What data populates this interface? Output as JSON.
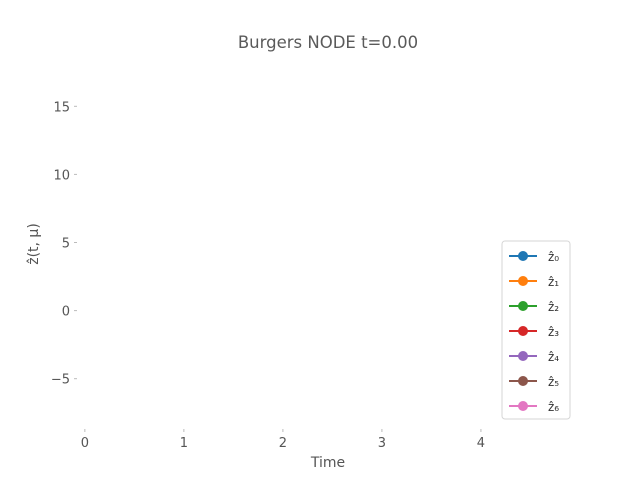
{
  "chart_data": {
    "type": "line",
    "title": "Burgers NODE t=0.00",
    "xlabel": "Time",
    "ylabel": "ẑ(t, μ)",
    "xlim": [
      -0.15,
      4.95
    ],
    "ylim": [
      -8.4,
      18.4
    ],
    "x_ticks": [
      0,
      1,
      2,
      3,
      4
    ],
    "y_ticks": [
      -5,
      0,
      5,
      10,
      15
    ],
    "grid": false,
    "legend_position": "lower-right",
    "series": [
      {
        "name": "ẑ₀",
        "color": "#1f77b4",
        "x": [],
        "y": []
      },
      {
        "name": "ẑ₁",
        "color": "#ff7f0e",
        "x": [],
        "y": []
      },
      {
        "name": "ẑ₂",
        "color": "#2ca02c",
        "x": [],
        "y": []
      },
      {
        "name": "ẑ₃",
        "color": "#d62728",
        "x": [],
        "y": []
      },
      {
        "name": "ẑ₄",
        "color": "#9467bd",
        "x": [],
        "y": []
      },
      {
        "name": "ẑ₅",
        "color": "#8c564b",
        "x": [],
        "y": []
      },
      {
        "name": "ẑ₆",
        "color": "#e377c2",
        "x": [],
        "y": []
      }
    ]
  }
}
